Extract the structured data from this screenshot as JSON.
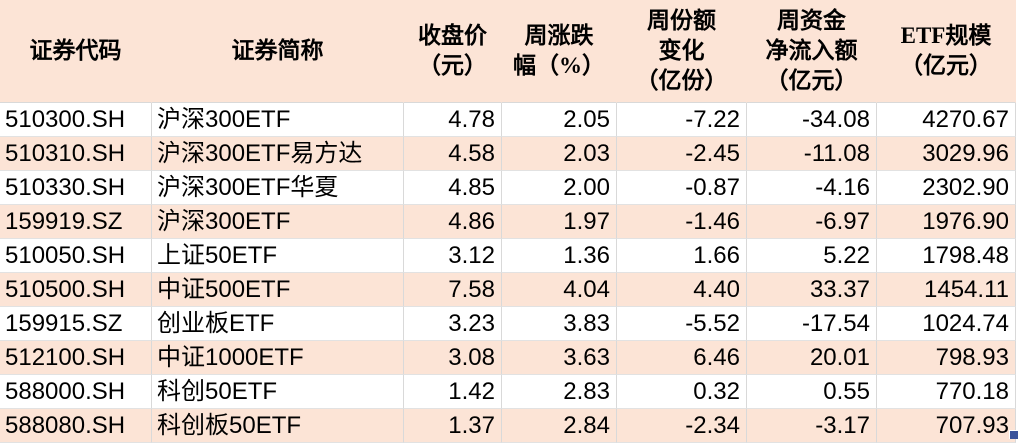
{
  "table": {
    "headers": [
      {
        "label": "证券代码"
      },
      {
        "label": "证券简称"
      },
      {
        "label": "收盘价\n（元）"
      },
      {
        "label": "周涨跌\n幅（%）"
      },
      {
        "label": "周份额\n变化\n（亿份）"
      },
      {
        "label": "周资金\n净流入额\n（亿元）"
      },
      {
        "label": "ETF规模\n（亿元）"
      }
    ],
    "rows": [
      [
        "510300.SH",
        "沪深300ETF",
        "4.78",
        "2.05",
        "-7.22",
        "-34.08",
        "4270.67"
      ],
      [
        "510310.SH",
        "沪深300ETF易方达",
        "4.58",
        "2.03",
        "-2.45",
        "-11.08",
        "3029.96"
      ],
      [
        "510330.SH",
        "沪深300ETF华夏",
        "4.85",
        "2.00",
        "-0.87",
        "-4.16",
        "2302.90"
      ],
      [
        "159919.SZ",
        "沪深300ETF",
        "4.86",
        "1.97",
        "-1.46",
        "-6.97",
        "1976.90"
      ],
      [
        "510050.SH",
        "上证50ETF",
        "3.12",
        "1.36",
        "1.66",
        "5.22",
        "1798.48"
      ],
      [
        "510500.SH",
        "中证500ETF",
        "7.58",
        "4.04",
        "4.40",
        "33.37",
        "1454.11"
      ],
      [
        "159915.SZ",
        "创业板ETF",
        "3.23",
        "3.83",
        "-5.52",
        "-17.54",
        "1024.74"
      ],
      [
        "512100.SH",
        "中证1000ETF",
        "3.08",
        "3.63",
        "6.46",
        "20.01",
        "798.93"
      ],
      [
        "588000.SH",
        "科创50ETF",
        "1.42",
        "2.83",
        "0.32",
        "0.55",
        "770.18"
      ],
      [
        "588080.SH",
        "科创板50ETF",
        "1.37",
        "2.84",
        "-2.34",
        "-3.17",
        "707.93"
      ]
    ]
  },
  "icons": {
    "fill_handle": "excel-fill-handle"
  },
  "colors": {
    "header_bg": "#fce4d6",
    "alt_bg": "#fce4d6",
    "grid_v": "#d9d9d9",
    "grid_h": "#e2e2e2",
    "handle": "#3a539b"
  }
}
